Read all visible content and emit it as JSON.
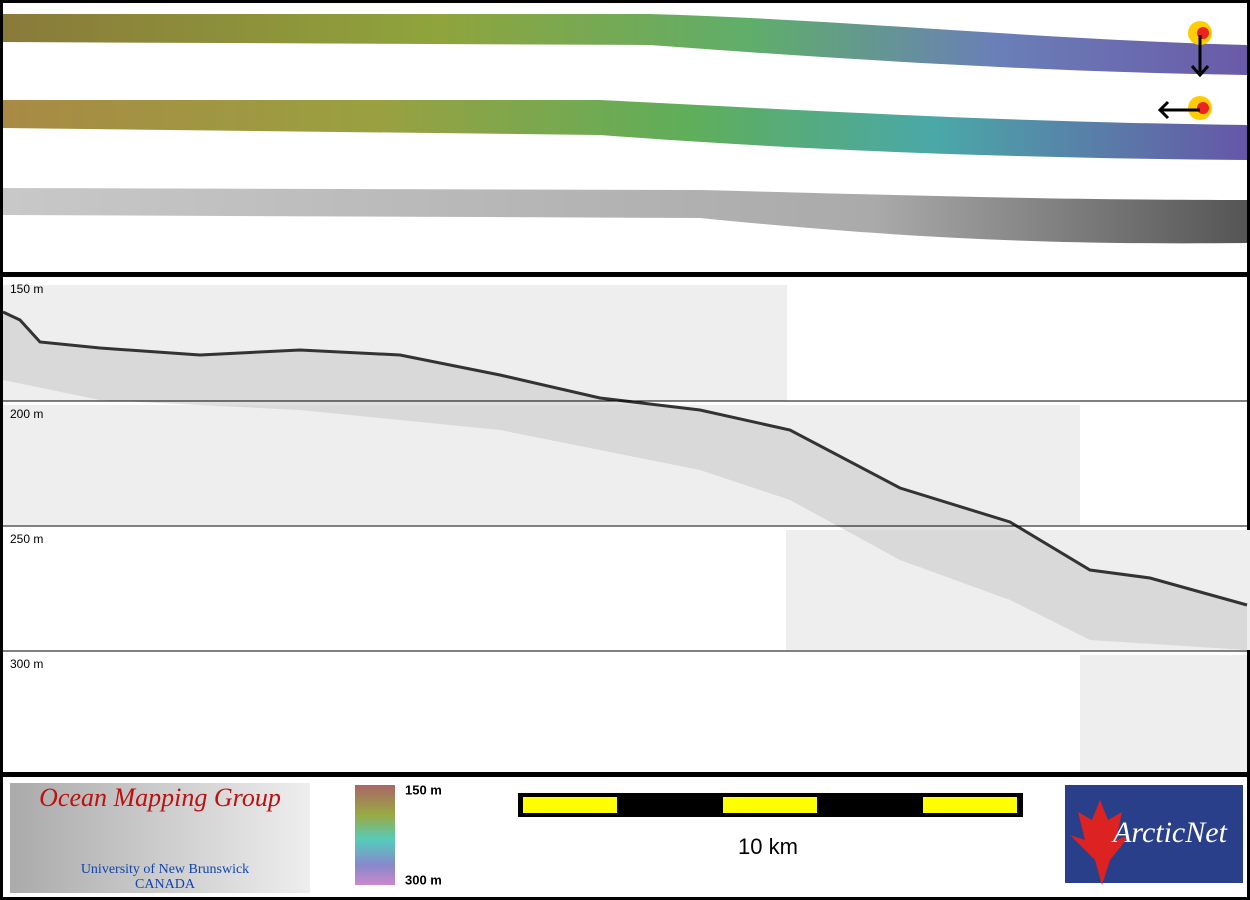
{
  "profile": {
    "depth_labels": [
      "150 m",
      "200 m",
      "250 m",
      "300 m"
    ]
  },
  "footer": {
    "logo": {
      "title": "Ocean Mapping Group",
      "university": "University of New Brunswick",
      "country": "CANADA"
    },
    "colorbar": {
      "top": "150 m",
      "bottom": "300 m"
    },
    "scale_bar": "10 km",
    "partner_logo": "ArcticNet"
  }
}
